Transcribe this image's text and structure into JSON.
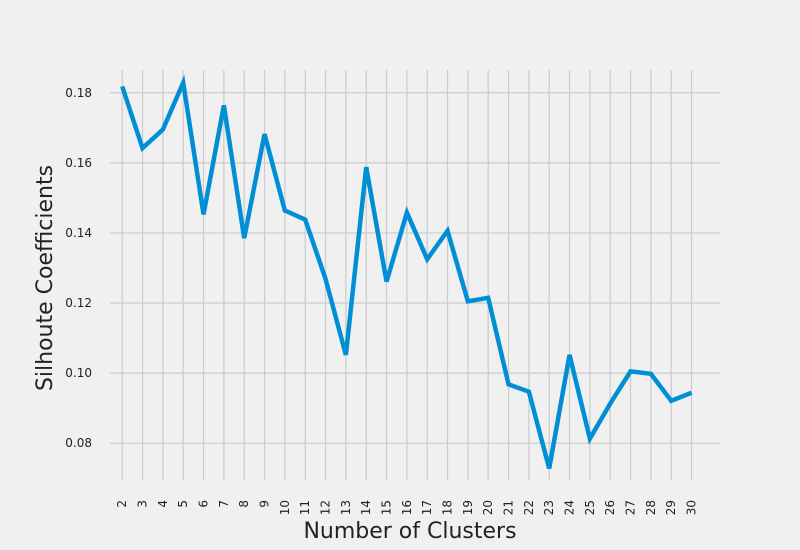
{
  "chart_data": {
    "type": "line",
    "title": "",
    "xlabel": "Number of Clusters",
    "ylabel": "Silhoute Coefficients",
    "x": [
      2,
      3,
      4,
      5,
      6,
      7,
      8,
      9,
      10,
      11,
      12,
      13,
      14,
      15,
      16,
      17,
      18,
      19,
      20,
      21,
      22,
      23,
      24,
      25,
      26,
      27,
      28,
      29,
      30
    ],
    "series": [
      {
        "values": [
          0.1818,
          0.1642,
          0.1695,
          0.1829,
          0.1453,
          0.1764,
          0.1385,
          0.1682,
          0.1464,
          0.1438,
          0.1269,
          0.1052,
          0.1588,
          0.1261,
          0.1458,
          0.1325,
          0.1406,
          0.1205,
          0.1215,
          0.0968,
          0.0947,
          0.0728,
          0.1052,
          0.0813,
          0.0913,
          0.1005,
          0.0998,
          0.0921,
          0.0944
        ],
        "color": "#008fd5"
      }
    ],
    "yticks": [
      "0.08",
      "0.10",
      "0.12",
      "0.14",
      "0.16",
      "0.18"
    ],
    "xticks": [
      "2",
      "3",
      "4",
      "5",
      "6",
      "7",
      "8",
      "9",
      "10",
      "11",
      "12",
      "13",
      "14",
      "15",
      "16",
      "17",
      "18",
      "19",
      "20",
      "21",
      "22",
      "23",
      "24",
      "25",
      "26",
      "27",
      "28",
      "29",
      "30"
    ],
    "ylim": [
      0.0695,
      0.1865
    ],
    "xlim": [
      1.4,
      31.4
    ],
    "grid": true,
    "legend": "none",
    "colors": {
      "background": "#f0f0f0",
      "grid": "#cbcbcb",
      "line": "#008fd5",
      "text": "#222222"
    }
  }
}
